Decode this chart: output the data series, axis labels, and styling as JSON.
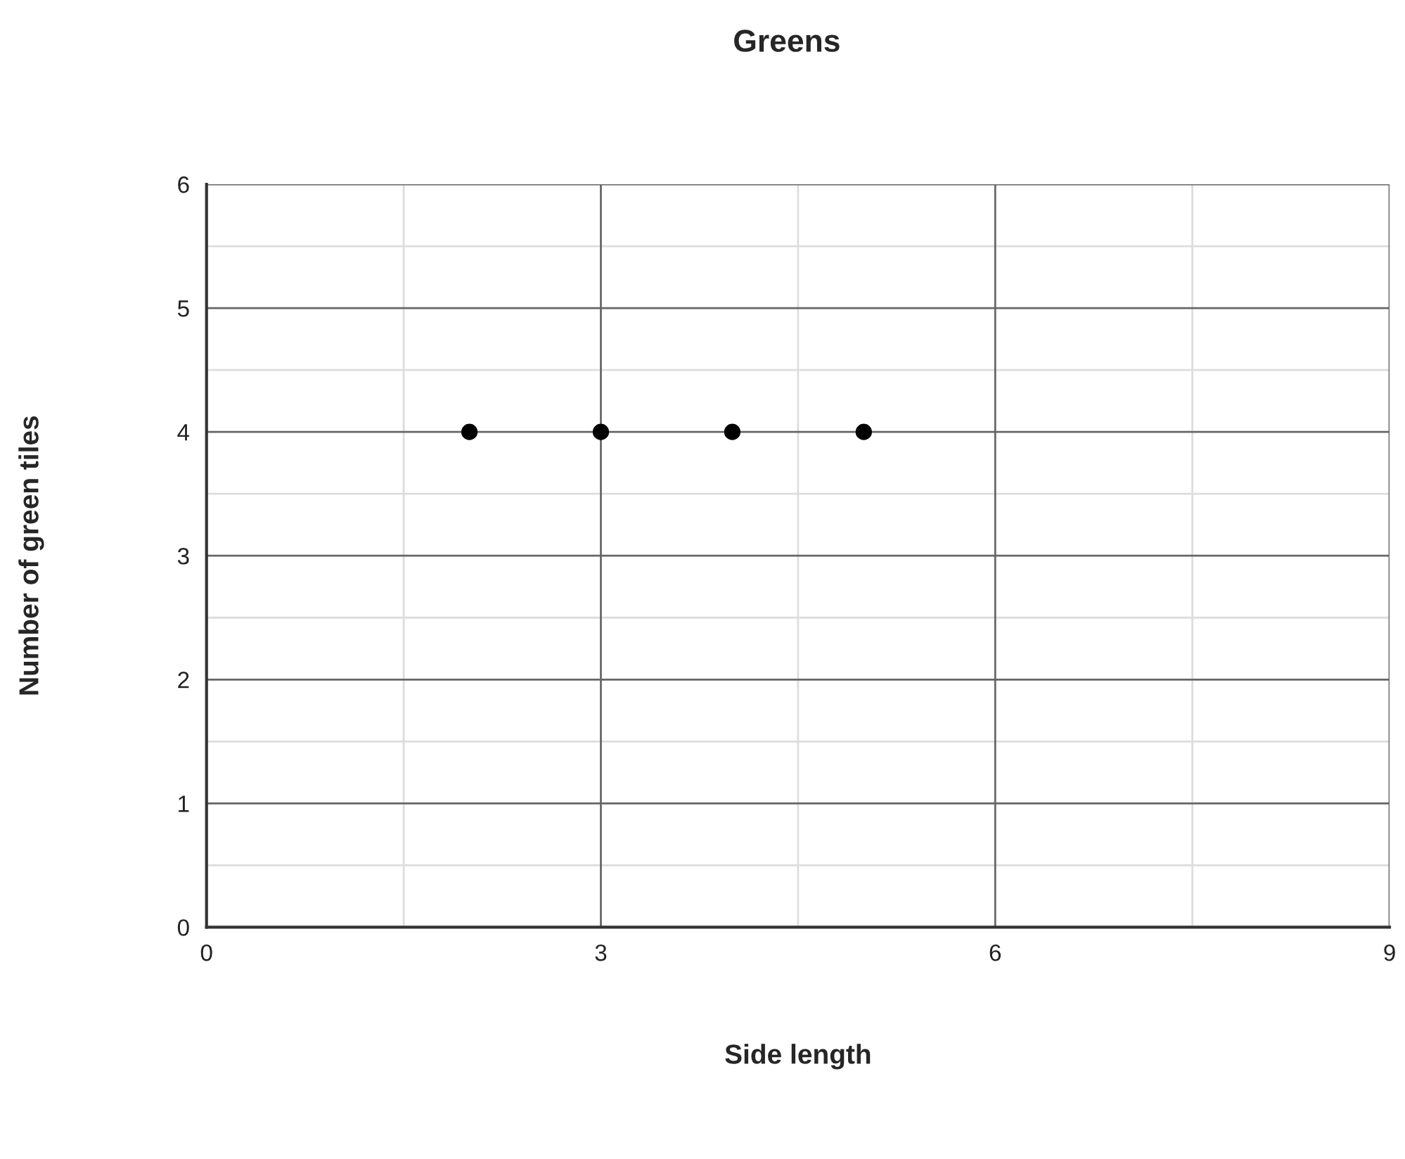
{
  "chart_data": {
    "type": "scatter",
    "title": "Greens",
    "xlabel": "Side length",
    "ylabel": "Number of green tiles",
    "x": [
      2,
      3,
      4,
      5
    ],
    "series": [
      {
        "color": "#000000",
        "values": [
          4,
          4,
          4,
          4
        ]
      }
    ],
    "xlim": [
      0,
      9
    ],
    "xticks": [
      0,
      3,
      6,
      9
    ],
    "ylim": [
      0,
      6
    ],
    "yticks": [
      0,
      1,
      2,
      3,
      4,
      5,
      6
    ],
    "grid": true,
    "marker": "circle"
  }
}
